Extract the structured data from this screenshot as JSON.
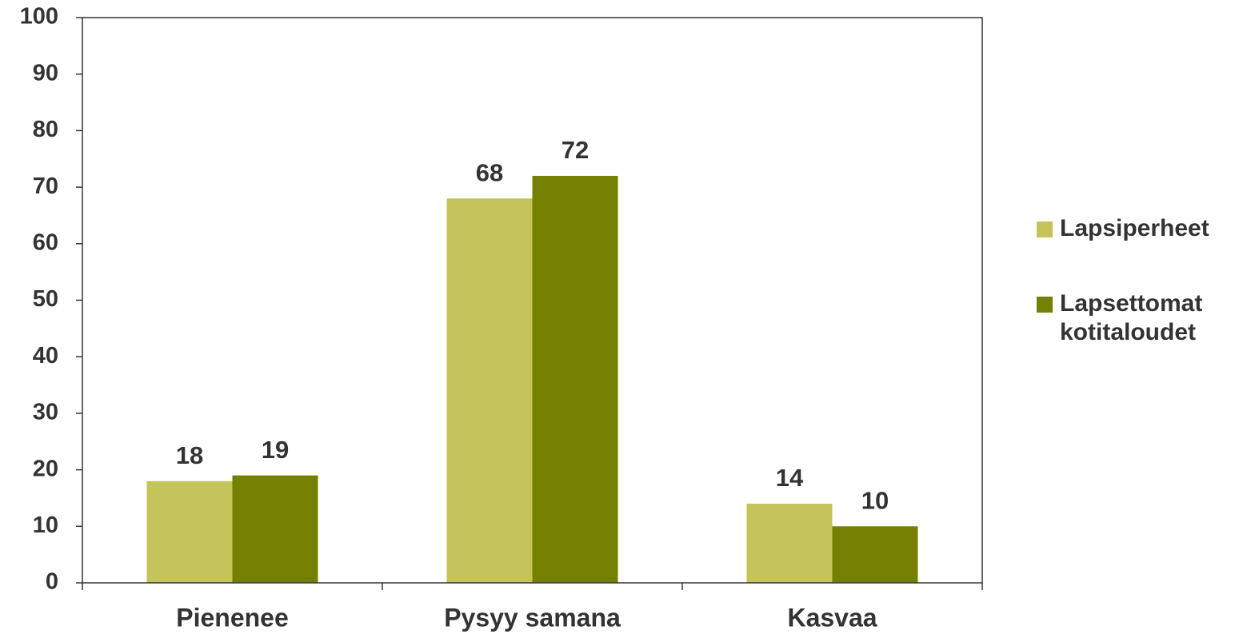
{
  "chart_data": {
    "type": "bar",
    "categories": [
      "Pienenee",
      "Pysyy samana",
      "Kasvaa"
    ],
    "series": [
      {
        "name": "Lapsiperheet",
        "color": "#c4c45a",
        "values": [
          18,
          68,
          14
        ]
      },
      {
        "name": "Lapsettomat kotitaloudet",
        "color": "#758000",
        "values": [
          19,
          72,
          10
        ]
      }
    ],
    "ylim": [
      0,
      100
    ],
    "yticks": [
      0,
      10,
      20,
      30,
      40,
      50,
      60,
      70,
      80,
      90,
      100
    ],
    "grid": false,
    "legend": "right"
  }
}
